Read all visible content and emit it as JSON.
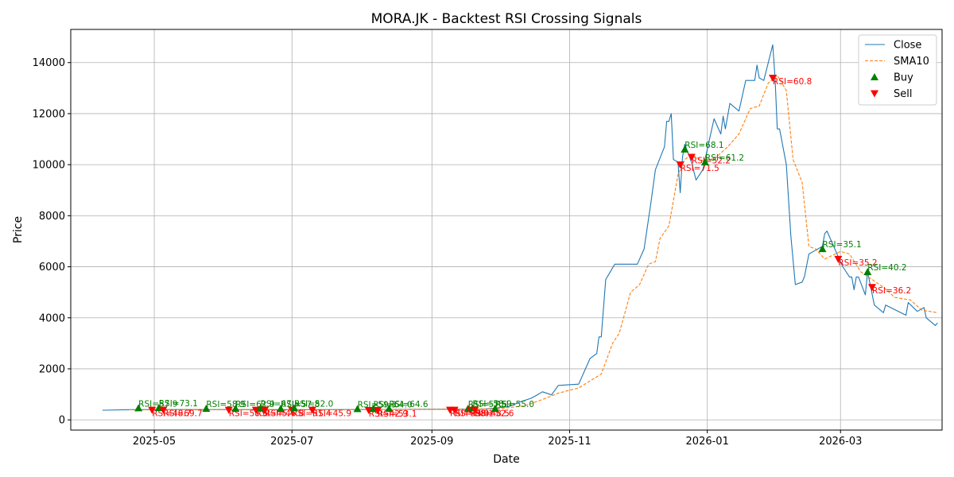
{
  "chart_data": {
    "type": "line",
    "title": "MORA.JK - Backtest RSI Crossing Signals",
    "xlabel": "Date",
    "ylabel": "Price",
    "xlim": [
      "2025-03-25",
      "2026-04-15"
    ],
    "ylim": [
      -400,
      15300
    ],
    "grid": true,
    "legend_position": "top-right",
    "x_ticks": [
      "2025-05-01",
      "2025-07-01",
      "2025-09-01",
      "2025-11-01",
      "2026-01-01",
      "2026-03-01"
    ],
    "x_tick_labels": [
      "2025-05",
      "2025-07",
      "2025-09",
      "2025-11",
      "2026-01",
      "2026-03"
    ],
    "y_ticks": [
      0,
      2000,
      4000,
      6000,
      8000,
      10000,
      12000,
      14000
    ],
    "series": [
      {
        "name": "Close",
        "color": "#1f77b4",
        "style": "solid",
        "points": [
          [
            "2025-04-08",
            380
          ],
          [
            "2025-04-20",
            400
          ],
          [
            "2025-05-10",
            405
          ],
          [
            "2025-06-10",
            405
          ],
          [
            "2025-07-10",
            400
          ],
          [
            "2025-08-10",
            410
          ],
          [
            "2025-09-10",
            420
          ],
          [
            "2025-09-25",
            430
          ],
          [
            "2025-10-05",
            520
          ],
          [
            "2025-10-10",
            700
          ],
          [
            "2025-10-15",
            850
          ],
          [
            "2025-10-18",
            1000
          ],
          [
            "2025-10-20",
            1100
          ],
          [
            "2025-10-24",
            980
          ],
          [
            "2025-10-27",
            1350
          ],
          [
            "2025-11-05",
            1400
          ],
          [
            "2025-11-10",
            2400
          ],
          [
            "2025-11-13",
            2600
          ],
          [
            "2025-11-14",
            3250
          ],
          [
            "2025-11-15",
            3250
          ],
          [
            "2025-11-17",
            5500
          ],
          [
            "2025-11-21",
            6100
          ],
          [
            "2025-12-01",
            6100
          ],
          [
            "2025-12-04",
            6700
          ],
          [
            "2025-12-07",
            8500
          ],
          [
            "2025-12-09",
            9800
          ],
          [
            "2025-12-13",
            10700
          ],
          [
            "2025-12-14",
            11700
          ],
          [
            "2025-12-15",
            11700
          ],
          [
            "2025-12-16",
            12000
          ],
          [
            "2025-12-17",
            10200
          ],
          [
            "2025-12-19",
            10100
          ],
          [
            "2025-12-20",
            8900
          ],
          [
            "2025-12-21",
            10300
          ],
          [
            "2025-12-22",
            10800
          ],
          [
            "2025-12-25",
            10100
          ],
          [
            "2025-12-27",
            9400
          ],
          [
            "2025-12-30",
            9800
          ],
          [
            "2026-01-02",
            11000
          ],
          [
            "2026-01-04",
            11800
          ],
          [
            "2026-01-07",
            11200
          ],
          [
            "2026-01-08",
            11900
          ],
          [
            "2026-01-09",
            11400
          ],
          [
            "2026-01-11",
            12400
          ],
          [
            "2026-01-15",
            12100
          ],
          [
            "2026-01-18",
            13300
          ],
          [
            "2026-01-22",
            13300
          ],
          [
            "2026-01-23",
            13900
          ],
          [
            "2026-01-24",
            13400
          ],
          [
            "2026-01-26",
            13300
          ],
          [
            "2026-01-28",
            14000
          ],
          [
            "2026-01-30",
            14700
          ],
          [
            "2026-01-31",
            13400
          ],
          [
            "2026-02-01",
            11400
          ],
          [
            "2026-02-02",
            11400
          ],
          [
            "2026-02-05",
            10000
          ],
          [
            "2026-02-07",
            7200
          ],
          [
            "2026-02-09",
            5300
          ],
          [
            "2026-02-12",
            5400
          ],
          [
            "2026-02-13",
            5600
          ],
          [
            "2026-02-15",
            6500
          ],
          [
            "2026-02-17",
            6600
          ],
          [
            "2026-02-21",
            6800
          ],
          [
            "2026-02-22",
            7300
          ],
          [
            "2026-02-23",
            7400
          ],
          [
            "2026-02-27",
            6600
          ],
          [
            "2026-03-02",
            6000
          ],
          [
            "2026-03-05",
            5600
          ],
          [
            "2026-03-06",
            5600
          ],
          [
            "2026-03-07",
            5100
          ],
          [
            "2026-03-08",
            5600
          ],
          [
            "2026-03-09",
            5600
          ],
          [
            "2026-03-12",
            4900
          ],
          [
            "2026-03-13",
            5800
          ],
          [
            "2026-03-16",
            4500
          ],
          [
            "2026-03-20",
            4200
          ],
          [
            "2026-03-21",
            4500
          ],
          [
            "2026-03-30",
            4100
          ],
          [
            "2026-03-31",
            4600
          ],
          [
            "2026-04-04",
            4250
          ],
          [
            "2026-04-07",
            4400
          ],
          [
            "2026-04-08",
            4000
          ],
          [
            "2026-04-12",
            3700
          ],
          [
            "2026-04-13",
            3800
          ]
        ]
      },
      {
        "name": "SMA10",
        "color": "#ff7f0e",
        "style": "dashed",
        "points": [
          [
            "2025-04-20",
            395
          ],
          [
            "2025-05-20",
            405
          ],
          [
            "2025-06-20",
            405
          ],
          [
            "2025-07-20",
            402
          ],
          [
            "2025-08-20",
            410
          ],
          [
            "2025-09-20",
            420
          ],
          [
            "2025-10-01",
            440
          ],
          [
            "2025-10-12",
            550
          ],
          [
            "2025-10-20",
            800
          ],
          [
            "2025-10-27",
            1050
          ],
          [
            "2025-11-05",
            1250
          ],
          [
            "2025-11-15",
            1800
          ],
          [
            "2025-11-20",
            3000
          ],
          [
            "2025-11-23",
            3400
          ],
          [
            "2025-11-28",
            5000
          ],
          [
            "2025-12-02",
            5300
          ],
          [
            "2025-12-06",
            6100
          ],
          [
            "2025-12-09",
            6200
          ],
          [
            "2025-12-11",
            7100
          ],
          [
            "2025-12-15",
            7600
          ],
          [
            "2025-12-19",
            9600
          ],
          [
            "2025-12-22",
            10200
          ],
          [
            "2025-12-25",
            10400
          ],
          [
            "2025-12-31",
            10100
          ],
          [
            "2026-01-05",
            10300
          ],
          [
            "2026-01-10",
            10700
          ],
          [
            "2026-01-15",
            11200
          ],
          [
            "2026-01-20",
            12200
          ],
          [
            "2026-01-24",
            12300
          ],
          [
            "2026-01-28",
            13200
          ],
          [
            "2026-02-01",
            13500
          ],
          [
            "2026-02-05",
            12900
          ],
          [
            "2026-02-08",
            10200
          ],
          [
            "2026-02-12",
            9300
          ],
          [
            "2026-02-15",
            6800
          ],
          [
            "2026-02-18",
            6700
          ],
          [
            "2026-02-22",
            6300
          ],
          [
            "2026-03-01",
            6600
          ],
          [
            "2026-03-05",
            6500
          ],
          [
            "2026-03-10",
            5800
          ],
          [
            "2026-03-15",
            5500
          ],
          [
            "2026-03-20",
            5200
          ],
          [
            "2026-03-25",
            4800
          ],
          [
            "2026-04-01",
            4700
          ],
          [
            "2026-04-06",
            4300
          ],
          [
            "2026-04-13",
            4200
          ]
        ]
      }
    ],
    "markers": [
      {
        "type": "buy",
        "date": "2025-04-24",
        "price": 460,
        "label": "RSI=57.9"
      },
      {
        "type": "sell",
        "date": "2025-04-30",
        "price": 390,
        "label": "RSI=48.7"
      },
      {
        "type": "buy",
        "date": "2025-05-03",
        "price": 470,
        "label": "RSI=73.1"
      },
      {
        "type": "sell",
        "date": "2025-05-05",
        "price": 390,
        "label": "RSI=69.7"
      },
      {
        "type": "buy",
        "date": "2025-05-24",
        "price": 440,
        "label": "RSI=58.9"
      },
      {
        "type": "sell",
        "date": "2025-06-03",
        "price": 390,
        "label": "RSI=58.6"
      },
      {
        "type": "buy",
        "date": "2025-06-06",
        "price": 440,
        "label": "RSI=62.9"
      },
      {
        "type": "sell",
        "date": "2025-06-15",
        "price": 390,
        "label": "RSI=45.4"
      },
      {
        "type": "buy",
        "date": "2025-06-17",
        "price": 450,
        "label": "RSI=67.5"
      },
      {
        "type": "sell",
        "date": "2025-06-19",
        "price": 390,
        "label": "RSI=46.8"
      },
      {
        "type": "buy",
        "date": "2025-06-26",
        "price": 440,
        "label": "RSI=57.8"
      },
      {
        "type": "sell",
        "date": "2025-07-01",
        "price": 390,
        "label": "RSI=51.4"
      },
      {
        "type": "buy",
        "date": "2025-07-02",
        "price": 460,
        "label": "RSI=52.0"
      },
      {
        "type": "sell",
        "date": "2025-07-10",
        "price": 390,
        "label": "RSI=45.9"
      },
      {
        "type": "buy",
        "date": "2025-07-30",
        "price": 430,
        "label": "RSI=59.3"
      },
      {
        "type": "sell",
        "date": "2025-08-04",
        "price": 380,
        "label": "RSI=42.9"
      },
      {
        "type": "buy",
        "date": "2025-08-06",
        "price": 430,
        "label": "RSI=64.0"
      },
      {
        "type": "sell",
        "date": "2025-08-08",
        "price": 380,
        "label": "RSI=53.1"
      },
      {
        "type": "buy",
        "date": "2025-08-13",
        "price": 440,
        "label": "RSI=64.6"
      },
      {
        "type": "sell",
        "date": "2025-09-09",
        "price": 390,
        "label": "RSI=39.0"
      },
      {
        "type": "sell",
        "date": "2025-09-11",
        "price": 390,
        "label": "RSI=38.1"
      },
      {
        "type": "buy",
        "date": "2025-09-17",
        "price": 440,
        "label": "RSI=57.5"
      },
      {
        "type": "sell",
        "date": "2025-09-18",
        "price": 390,
        "label": "RSI=48.5"
      },
      {
        "type": "buy",
        "date": "2025-09-19",
        "price": 460,
        "label": "RSI=58.9"
      },
      {
        "type": "sell",
        "date": "2025-09-20",
        "price": 390,
        "label": "RSI=52.6"
      },
      {
        "type": "buy",
        "date": "2025-09-29",
        "price": 440,
        "label": "RSI=55.0"
      },
      {
        "type": "sell",
        "date": "2025-12-20",
        "price": 10000,
        "label": "RSI=71.5"
      },
      {
        "type": "buy",
        "date": "2025-12-22",
        "price": 10600,
        "label": "RSI=68.1"
      },
      {
        "type": "sell",
        "date": "2025-12-25",
        "price": 10300,
        "label": "RSI=52.2"
      },
      {
        "type": "buy",
        "date": "2025-12-31",
        "price": 10100,
        "label": "RSI=61.2"
      },
      {
        "type": "sell",
        "date": "2026-01-30",
        "price": 13400,
        "label": "RSI=60.8"
      },
      {
        "type": "buy",
        "date": "2026-02-21",
        "price": 6700,
        "label": "RSI=35.1"
      },
      {
        "type": "sell",
        "date": "2026-02-28",
        "price": 6300,
        "label": "RSI=35.2"
      },
      {
        "type": "buy",
        "date": "2026-03-13",
        "price": 5800,
        "label": "RSI=40.2"
      },
      {
        "type": "sell",
        "date": "2026-03-15",
        "price": 5200,
        "label": "RSI=36.2"
      }
    ],
    "legend": [
      {
        "name": "Close",
        "kind": "line",
        "color": "#1f77b4",
        "style": "solid"
      },
      {
        "name": "SMA10",
        "kind": "line",
        "color": "#ff7f0e",
        "style": "dashed"
      },
      {
        "name": "Buy",
        "kind": "marker",
        "color": "#008000",
        "marker": "triangle-up"
      },
      {
        "name": "Sell",
        "kind": "marker",
        "color": "#ff0000",
        "marker": "triangle-down"
      }
    ]
  }
}
